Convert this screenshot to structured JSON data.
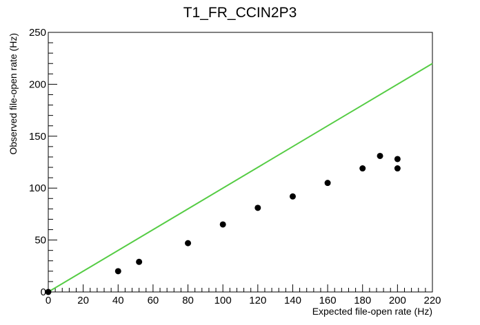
{
  "chart_data": {
    "type": "scatter",
    "title": "T1_FR_CCIN2P3",
    "xlabel": "Expected file-open rate (Hz)",
    "ylabel": "Observed file-open rate (Hz)",
    "xlim": [
      0,
      220
    ],
    "ylim": [
      0,
      250
    ],
    "x_ticks": [
      0,
      20,
      40,
      60,
      80,
      100,
      120,
      140,
      160,
      180,
      200,
      220
    ],
    "y_ticks": [
      0,
      50,
      100,
      150,
      200,
      250
    ],
    "grid": false,
    "series": [
      {
        "type": "scatter",
        "color": "#000000",
        "points": [
          [
            0,
            0
          ],
          [
            40,
            20
          ],
          [
            52,
            29
          ],
          [
            80,
            47
          ],
          [
            100,
            65
          ],
          [
            120,
            81
          ],
          [
            140,
            92
          ],
          [
            160,
            105
          ],
          [
            180,
            119
          ],
          [
            190,
            131
          ],
          [
            200,
            128
          ],
          [
            200,
            119
          ]
        ]
      },
      {
        "type": "line",
        "color": "#55cc44",
        "points": [
          [
            0,
            0
          ],
          [
            220,
            220
          ]
        ]
      }
    ]
  }
}
